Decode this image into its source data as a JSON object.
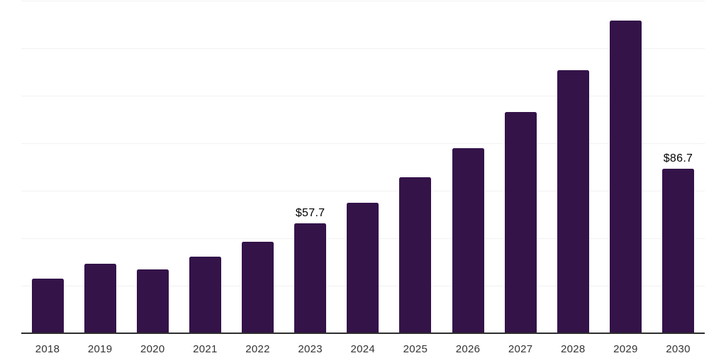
{
  "chart_data": {
    "type": "bar",
    "title": "",
    "xlabel": "",
    "ylabel": "",
    "categories": [
      "2018",
      "2019",
      "2020",
      "2021",
      "2022",
      "2023",
      "2024",
      "2025",
      "2026",
      "2027",
      "2028",
      "2029",
      "2030"
    ],
    "values": [
      28.7,
      36.5,
      33.6,
      40.2,
      48.3,
      57.7,
      68.7,
      82.1,
      97.4,
      116.3,
      138.4,
      164.4,
      86.7
    ],
    "bar_labels": [
      "",
      "",
      "",
      "",
      "",
      "$57.7",
      "",
      "",
      "",
      "",
      "",
      "",
      "$86.7"
    ],
    "ylim": [
      0,
      175
    ],
    "grid_step": 25,
    "grid": "horizontal-only",
    "legend_position": "none",
    "y_axis_tick_labels_visible": false
  },
  "style": {
    "bar_color": "#341349",
    "gridline_color": "#f2f2f2",
    "axis_color": "#2e2e2e",
    "tick_label_color": "#333333",
    "bar_label_color": "#000000",
    "background_color": "#ffffff"
  }
}
